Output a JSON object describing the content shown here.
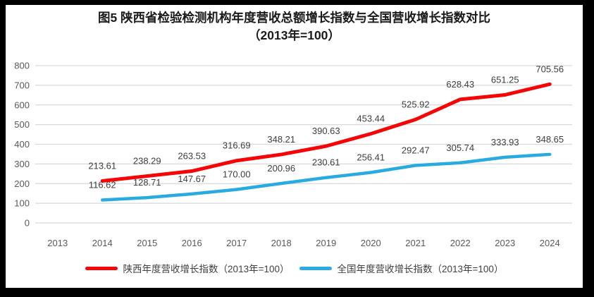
{
  "title": {
    "line1": "图5  陕西省检验检测机构年度营收总额增长指数与全国营收增长指数对比",
    "line2": "（2013年=100）"
  },
  "chart_data": {
    "type": "line",
    "title": "图5 陕西省检验检测机构年度营收总额增长指数与全国营收增长指数对比（2013年=100）",
    "categories": [
      "2013",
      "2014",
      "2015",
      "2016",
      "2017",
      "2018",
      "2019",
      "2020",
      "2021",
      "2022",
      "2023",
      "2024"
    ],
    "series": [
      {
        "name": "陕西年度营收增长指数（2013年=100）",
        "color": "#f50505",
        "values": [
          null,
          213.61,
          238.29,
          263.53,
          316.69,
          348.21,
          390.63,
          453.44,
          525.92,
          628.43,
          651.25,
          705.56
        ]
      },
      {
        "name": "全国年度营收增长指数（2013年=100）",
        "color": "#29abe2",
        "values": [
          null,
          116.62,
          128.71,
          147.67,
          170.0,
          200.96,
          230.61,
          256.41,
          292.47,
          305.74,
          333.93,
          348.65
        ]
      }
    ],
    "ylim": [
      0,
      800
    ],
    "ytick_step": 100,
    "grid": "horizontal",
    "legend_position": "bottom",
    "label_decimals": 2,
    "xlabel": "",
    "ylabel": ""
  },
  "legend": {
    "items": [
      {
        "label": "陕西年度营收增长指数（2013年=100）",
        "color": "#f50505"
      },
      {
        "label": "全国年度营收增长指数（2013年=100）",
        "color": "#29abe2"
      }
    ]
  },
  "colors": {
    "grid": "#d9d9d9",
    "axis_text": "#595959",
    "data_label": "#3d3d3d",
    "frame": "#000000",
    "background": "#ffffff"
  }
}
